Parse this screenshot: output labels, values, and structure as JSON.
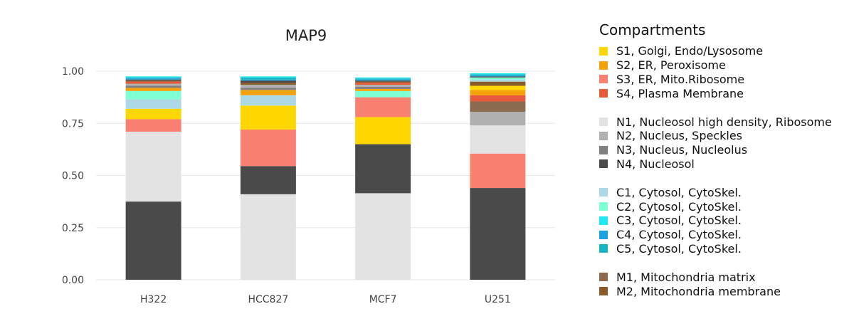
{
  "chart_data": {
    "type": "bar",
    "stacked": true,
    "title": "MAP9",
    "xlabel": "",
    "ylabel": "",
    "ylim": [
      0,
      1.0
    ],
    "yticks": [
      "0.00",
      "0.25",
      "0.50",
      "0.75",
      "1.00"
    ],
    "grid": true,
    "legend_position": "right",
    "categories": [
      "H322",
      "HCC827",
      "MCF7",
      "U251"
    ],
    "series": [
      {
        "name": "N4, Nucleosol",
        "color": "#4a4a4a",
        "values": [
          0.375,
          0.0,
          0.0,
          0.44
        ]
      },
      {
        "name": "N1, Nucleosol high density, Ribosome",
        "color": "#e3e3e3",
        "values": [
          0.335,
          0.41,
          0.415,
          0.0
        ]
      },
      {
        "name": "N4, Nucleosol",
        "color": "#4a4a4a",
        "values": [
          0.0,
          0.135,
          0.235,
          0.0
        ]
      },
      {
        "name": "S3, ER, Mito.Ribosome",
        "color": "#fa8072",
        "values": [
          0.06,
          0.175,
          0.0,
          0.165
        ]
      },
      {
        "name": "N1, Nucleosol high density, Ribosome",
        "color": "#e3e3e3",
        "values": [
          0.0,
          0.0,
          0.0,
          0.135
        ]
      },
      {
        "name": "S1, Golgi, Endo/Lysosome",
        "color": "#ffd700",
        "values": [
          0.05,
          0.115,
          0.13,
          0.0
        ]
      },
      {
        "name": "N2, Nucleus, Speckles",
        "color": "#b0b0b0",
        "values": [
          0.0,
          0.0,
          0.0,
          0.065
        ]
      },
      {
        "name": "S3, ER, Mito.Ribosome",
        "color": "#fa8072",
        "values": [
          0.0,
          0.0,
          0.095,
          0.0
        ]
      },
      {
        "name": "M1, Mitochondria matrix",
        "color": "#8b6b50",
        "values": [
          0.0,
          0.0,
          0.0,
          0.05
        ]
      },
      {
        "name": "C1, Cytosol, CytoSkel.",
        "color": "#add8e6",
        "values": [
          0.045,
          0.05,
          0.0,
          0.0
        ]
      },
      {
        "name": "S4, Plasma Membrane",
        "color": "#e85a3c",
        "values": [
          0.0,
          0.0,
          0.0,
          0.03
        ]
      },
      {
        "name": "C2, Cytosol, CytoSkel.",
        "color": "#7fffd4",
        "values": [
          0.04,
          0.0,
          0.03,
          0.0
        ]
      },
      {
        "name": "S2, ER, Peroxisome",
        "color": "#f5a20a",
        "values": [
          0.015,
          0.025,
          0.01,
          0.025
        ]
      },
      {
        "name": "S1, Golgi, Endo/Lysosome",
        "color": "#ffd700",
        "values": [
          0.0,
          0.0,
          0.0,
          0.02
        ]
      },
      {
        "name": "N3, Nucleus, Nucleolus",
        "color": "#808080",
        "values": [
          0.01,
          0.01,
          0.01,
          0.0
        ]
      },
      {
        "name": "M2, Mitochondria membrane",
        "color": "#8b5a2b",
        "values": [
          0.0,
          0.0,
          0.0,
          0.02
        ]
      },
      {
        "name": "N2, Nucleus, Speckles",
        "color": "#b0b0b0",
        "values": [
          0.01,
          0.015,
          0.01,
          0.0
        ]
      },
      {
        "name": "S4, Plasma Membrane",
        "color": "#e85a3c",
        "values": [
          0.01,
          0.0,
          0.01,
          0.0
        ]
      },
      {
        "name": "C1, Cytosol, CytoSkel.",
        "color": "#add8e6",
        "values": [
          0.0,
          0.0,
          0.0,
          0.01
        ]
      },
      {
        "name": "M2, Mitochondria membrane",
        "color": "#8b5a2b",
        "values": [
          0.005,
          0.01,
          0.005,
          0.0
        ]
      },
      {
        "name": "C2, Cytosol, CytoSkel.",
        "color": "#7fffd4",
        "values": [
          0.0,
          0.0,
          0.0,
          0.01
        ]
      },
      {
        "name": "N4, Nucleosol",
        "color": "#4a4a4a",
        "values": [
          0.005,
          0.01,
          0.005,
          0.005
        ]
      },
      {
        "name": "C4, Cytosol, CytoSkel.",
        "color": "#1aa3e0",
        "values": [
          0.005,
          0.005,
          0.005,
          0.005
        ]
      },
      {
        "name": "C5, Cytosol, CytoSkel.",
        "color": "#17b4c4",
        "values": [
          0.005,
          0.01,
          0.005,
          0.005
        ]
      },
      {
        "name": "C3, Cytosol, CytoSkel.",
        "color": "#1ee8f0",
        "values": [
          0.005,
          0.005,
          0.005,
          0.005
        ]
      }
    ]
  },
  "legend": {
    "title": "Compartments",
    "groups": [
      [
        {
          "label": "S1, Golgi, Endo/Lysosome",
          "color": "#ffd700"
        },
        {
          "label": "S2, ER, Peroxisome",
          "color": "#f5a20a"
        },
        {
          "label": "S3, ER, Mito.Ribosome",
          "color": "#fa8072"
        },
        {
          "label": "S4, Plasma Membrane",
          "color": "#e85a3c"
        }
      ],
      [
        {
          "label": "N1, Nucleosol high density, Ribosome",
          "color": "#e3e3e3"
        },
        {
          "label": "N2, Nucleus, Speckles",
          "color": "#b0b0b0"
        },
        {
          "label": "N3, Nucleus, Nucleolus",
          "color": "#808080"
        },
        {
          "label": "N4, Nucleosol",
          "color": "#4a4a4a"
        }
      ],
      [
        {
          "label": "C1, Cytosol, CytoSkel.",
          "color": "#add8e6"
        },
        {
          "label": "C2, Cytosol, CytoSkel.",
          "color": "#7fffd4"
        },
        {
          "label": "C3, Cytosol, CytoSkel.",
          "color": "#1ee8f0"
        },
        {
          "label": "C4, Cytosol, CytoSkel.",
          "color": "#1aa3e0"
        },
        {
          "label": "C5, Cytosol, CytoSkel.",
          "color": "#17b4c4"
        }
      ],
      [
        {
          "label": "M1, Mitochondria matrix",
          "color": "#8b6b50"
        },
        {
          "label": "M2, Mitochondria membrane",
          "color": "#8b5a2b"
        }
      ]
    ]
  }
}
